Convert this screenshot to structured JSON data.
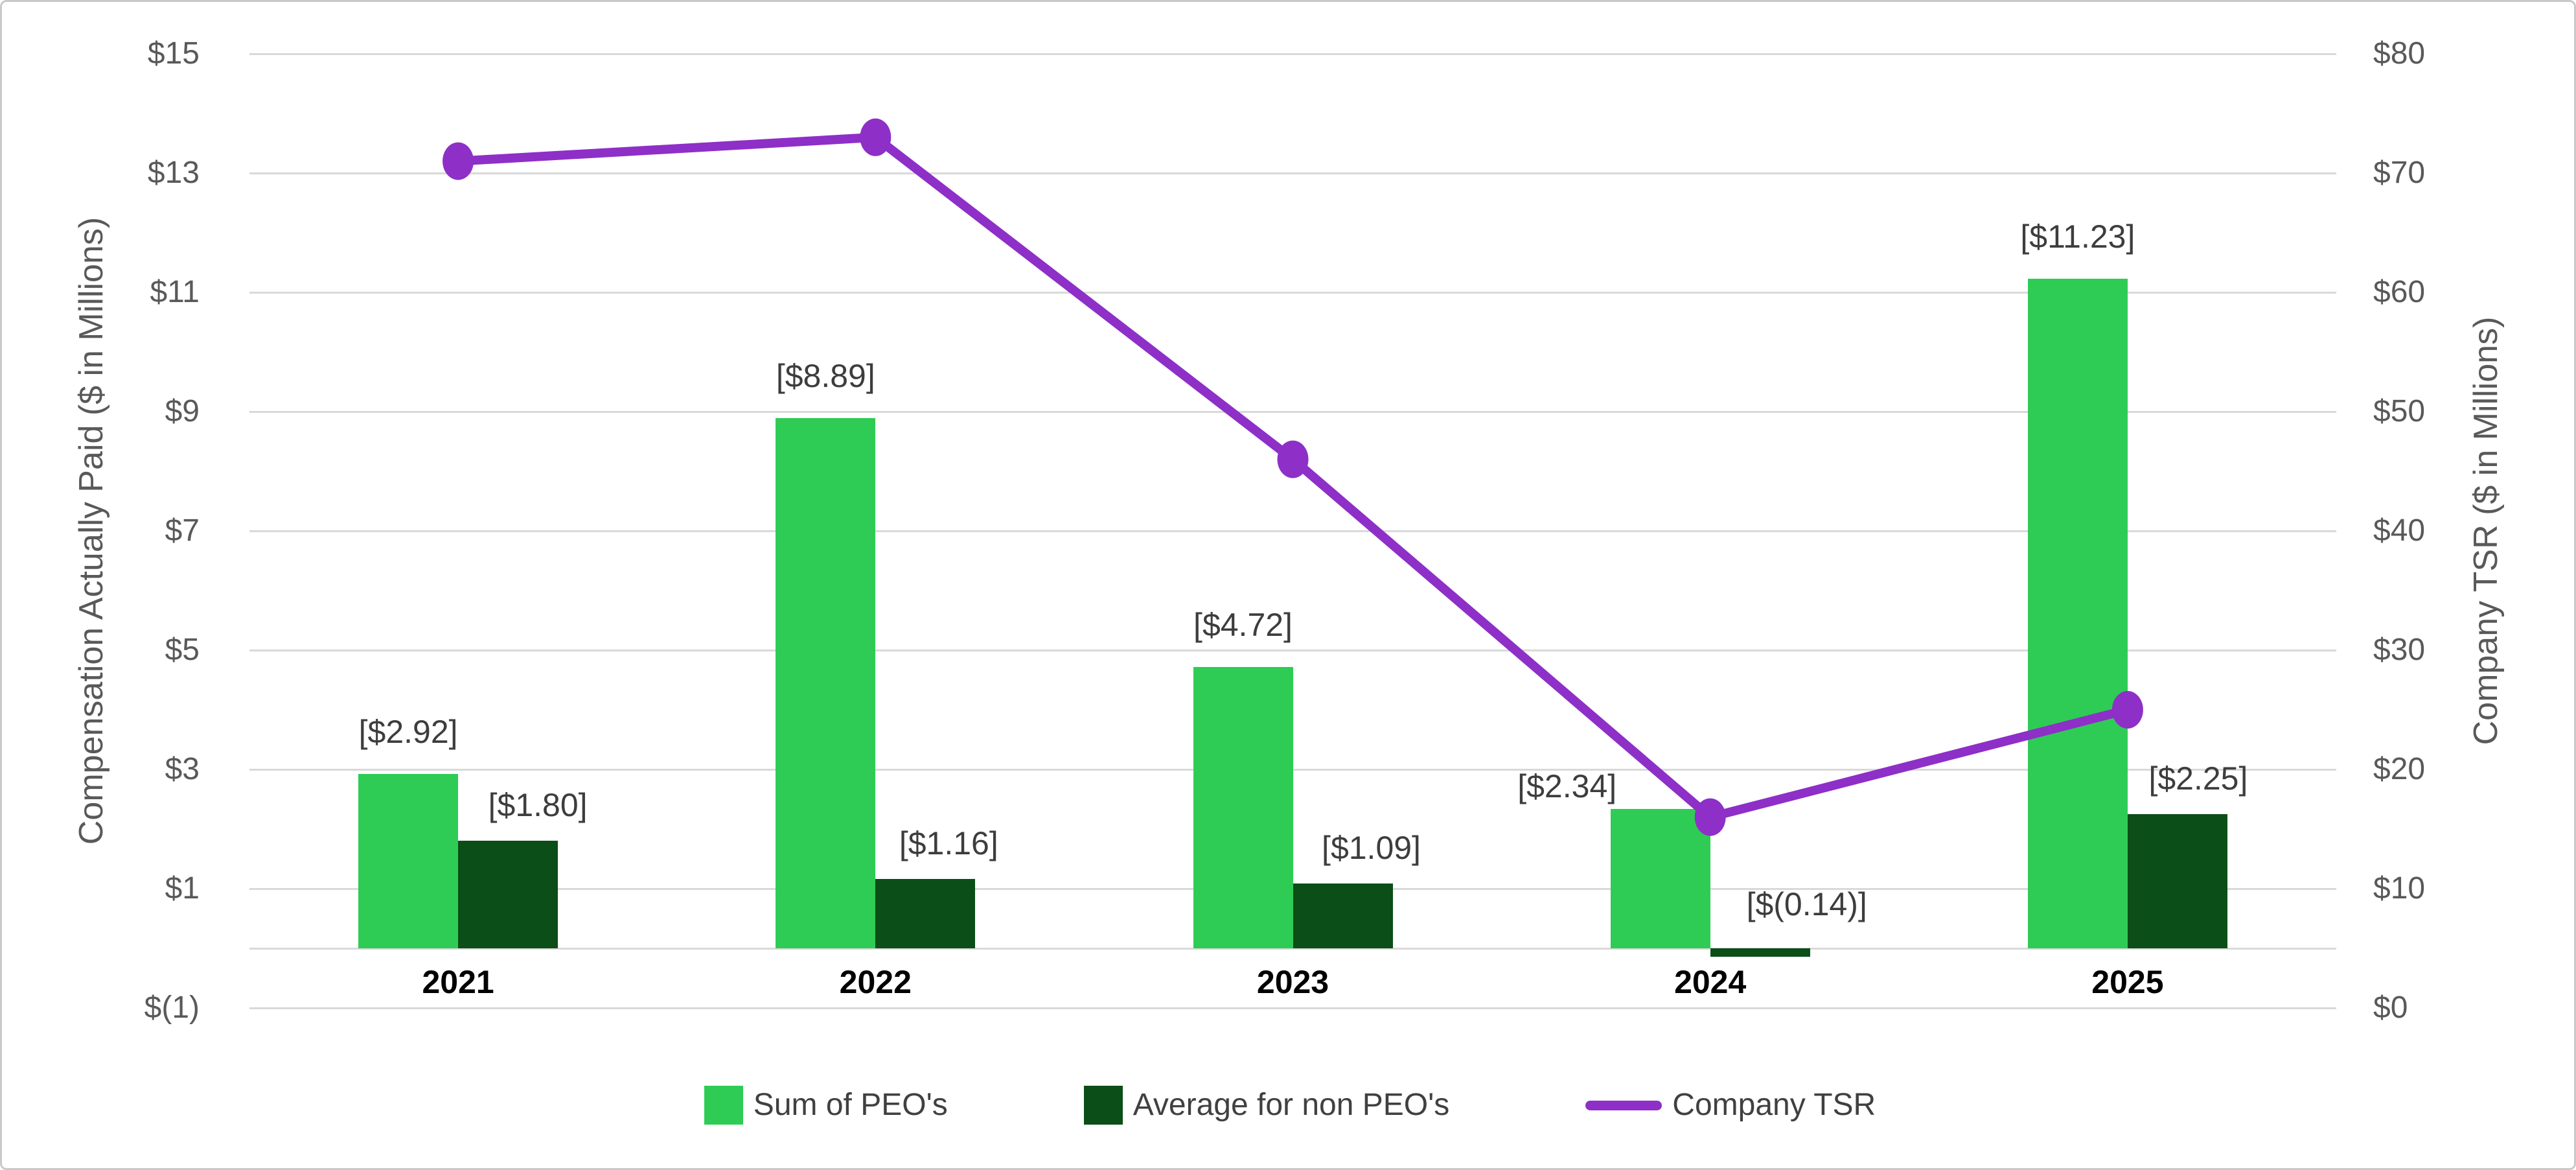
{
  "chart_data": {
    "type": "bar+line combo",
    "categories": [
      "2021",
      "2022",
      "2023",
      "2024",
      "2025"
    ],
    "series": [
      {
        "name": "Sum of PEO's",
        "type": "bar",
        "axis": "left",
        "color": "#2ecc55",
        "values": [
          2.92,
          8.89,
          4.72,
          2.34,
          11.23
        ],
        "data_labels": [
          "[$2.92]",
          "[$8.89]",
          "[$4.72]",
          "[$2.34]",
          "[$11.23]"
        ]
      },
      {
        "name": "Average for non PEO's",
        "type": "bar",
        "axis": "left",
        "color": "#0b4e17",
        "values": [
          1.8,
          1.16,
          1.09,
          -0.14,
          2.25
        ],
        "data_labels": [
          "[$1.80]",
          "[$1.16]",
          "[$1.09]",
          "[$(0.14)]",
          "[$2.25]"
        ]
      },
      {
        "name": "Company TSR",
        "type": "line",
        "axis": "right",
        "color": "#8e2fc7",
        "values": [
          71,
          73,
          46,
          16,
          25
        ]
      }
    ],
    "left_axis": {
      "title": "Compensation Actually Paid ($ in Millions)",
      "min": -1,
      "max": 15,
      "tick_step": 2,
      "ticks": [
        "$15",
        "$13",
        "$11",
        "$9",
        "$7",
        "$5",
        "$3",
        "$1",
        "$(1)"
      ],
      "tick_values": [
        15,
        13,
        11,
        9,
        7,
        5,
        3,
        1,
        -1
      ]
    },
    "right_axis": {
      "title": "Company TSR ($ in Millions)",
      "min": 0,
      "max": 80,
      "tick_step": 10,
      "ticks": [
        "$80",
        "$70",
        "$60",
        "$50",
        "$40",
        "$30",
        "$20",
        "$10",
        "$0"
      ],
      "tick_values": [
        80,
        70,
        60,
        50,
        40,
        30,
        20,
        10,
        0
      ]
    },
    "grid": "horizontal-only",
    "baseline_left_value": 0,
    "legend": {
      "position": "bottom-center",
      "items": [
        "Sum of PEO's",
        "Average for non PEO's",
        "Company TSR"
      ]
    },
    "colors": {
      "gridline": "#d9d9d9",
      "tick_text": "#595959",
      "axis_title_text": "#595959",
      "data_label_text": "#3d3d3d",
      "category_label_text": "#000000",
      "frame_border": "#c9c9c9",
      "background": "#ffffff"
    }
  }
}
